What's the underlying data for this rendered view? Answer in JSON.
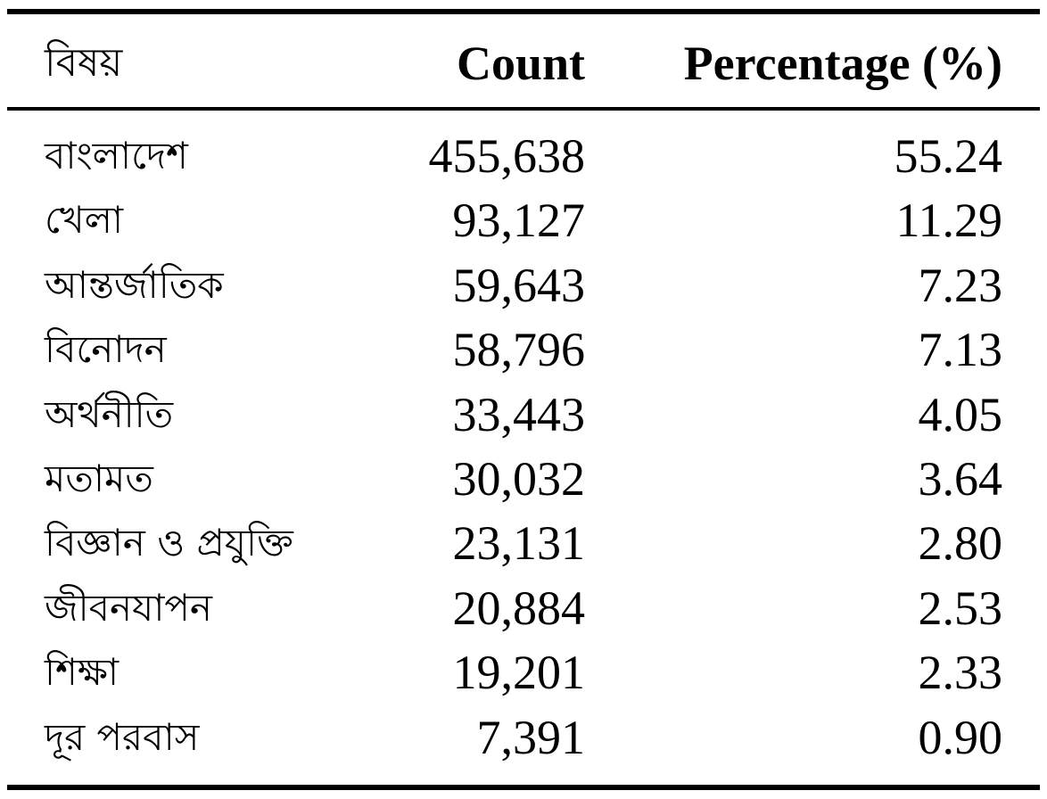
{
  "table": {
    "headers": {
      "subject": "বিষয়",
      "count": "Count",
      "percentage": "Percentage (%)"
    },
    "rows": [
      {
        "subject": "বাংলাদেশ",
        "count": "455,638",
        "percentage": "55.24"
      },
      {
        "subject": "খেলা",
        "count": "93,127",
        "percentage": "11.29"
      },
      {
        "subject": "আন্তর্জাতিক",
        "count": "59,643",
        "percentage": "7.23"
      },
      {
        "subject": "বিনোদন",
        "count": "58,796",
        "percentage": "7.13"
      },
      {
        "subject": "অর্থনীতি",
        "count": "33,443",
        "percentage": "4.05"
      },
      {
        "subject": "মতামত",
        "count": "30,032",
        "percentage": "3.64"
      },
      {
        "subject": "বিজ্ঞান ও প্রযুক্তি",
        "count": "23,131",
        "percentage": "2.80"
      },
      {
        "subject": "জীবনযাপন",
        "count": "20,884",
        "percentage": "2.53"
      },
      {
        "subject": "শিক্ষা",
        "count": "19,201",
        "percentage": "2.33"
      },
      {
        "subject": "দূর পরবাস",
        "count": "7,391",
        "percentage": "0.90"
      }
    ]
  }
}
